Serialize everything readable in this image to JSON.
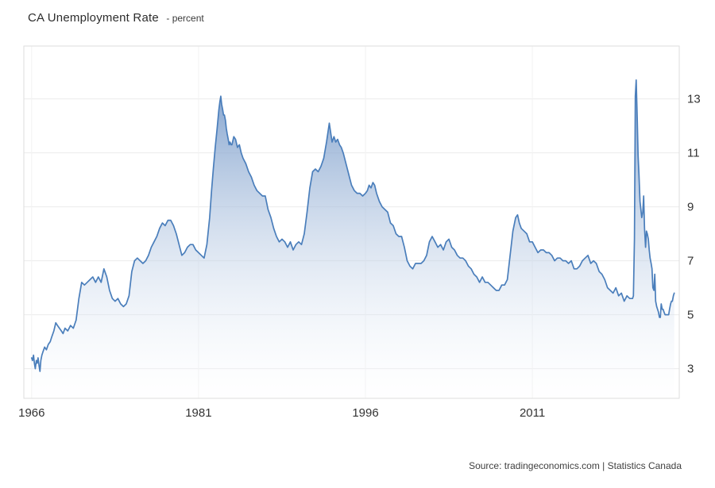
{
  "chart_data": {
    "type": "area",
    "title": "CA Unemployment Rate",
    "subtitle": "- percent",
    "source": "Source: tradingeconomics.com | Statistics Canada",
    "xlabel": "",
    "ylabel": "percent",
    "xlim": [
      1965.3,
      2024.2
    ],
    "ylim": [
      1.9,
      14.96
    ],
    "yticks": [
      3,
      5,
      7,
      9,
      11,
      13
    ],
    "xticks": [
      1966,
      1981,
      1996,
      2011
    ],
    "grid": true,
    "legend": "none",
    "colors": {
      "line": "#4a7ebb",
      "area_top": "rgba(92,134,190,0.95)",
      "area_bottom": "rgba(252,253,255,0.15)",
      "grid": "#ececec",
      "grid_v": "#f2f2f2",
      "border": "#dedede",
      "tick_text": "#333333"
    },
    "series": [
      {
        "name": "CA Unemployment Rate",
        "points": [
          [
            1966.0,
            3.4
          ],
          [
            1966.08,
            3.3
          ],
          [
            1966.17,
            3.5
          ],
          [
            1966.25,
            3.2
          ],
          [
            1966.33,
            3.0
          ],
          [
            1966.42,
            3.3
          ],
          [
            1966.5,
            3.2
          ],
          [
            1966.58,
            3.4
          ],
          [
            1966.67,
            3.1
          ],
          [
            1966.75,
            2.9
          ],
          [
            1966.83,
            3.3
          ],
          [
            1966.92,
            3.5
          ],
          [
            1967.0,
            3.6
          ],
          [
            1967.17,
            3.8
          ],
          [
            1967.33,
            3.7
          ],
          [
            1967.5,
            3.9
          ],
          [
            1967.67,
            4.0
          ],
          [
            1967.83,
            4.2
          ],
          [
            1968.0,
            4.4
          ],
          [
            1968.17,
            4.7
          ],
          [
            1968.33,
            4.6
          ],
          [
            1968.5,
            4.5
          ],
          [
            1968.67,
            4.4
          ],
          [
            1968.83,
            4.3
          ],
          [
            1969.0,
            4.5
          ],
          [
            1969.25,
            4.4
          ],
          [
            1969.5,
            4.6
          ],
          [
            1969.75,
            4.5
          ],
          [
            1970.0,
            4.8
          ],
          [
            1970.25,
            5.6
          ],
          [
            1970.5,
            6.2
          ],
          [
            1970.75,
            6.1
          ],
          [
            1971.0,
            6.2
          ],
          [
            1971.25,
            6.3
          ],
          [
            1971.5,
            6.4
          ],
          [
            1971.75,
            6.2
          ],
          [
            1972.0,
            6.4
          ],
          [
            1972.25,
            6.2
          ],
          [
            1972.5,
            6.7
          ],
          [
            1972.75,
            6.4
          ],
          [
            1973.0,
            5.9
          ],
          [
            1973.25,
            5.6
          ],
          [
            1973.5,
            5.5
          ],
          [
            1973.75,
            5.6
          ],
          [
            1974.0,
            5.4
          ],
          [
            1974.25,
            5.3
          ],
          [
            1974.5,
            5.4
          ],
          [
            1974.75,
            5.7
          ],
          [
            1975.0,
            6.6
          ],
          [
            1975.25,
            7.0
          ],
          [
            1975.5,
            7.1
          ],
          [
            1975.75,
            7.0
          ],
          [
            1976.0,
            6.9
          ],
          [
            1976.25,
            7.0
          ],
          [
            1976.5,
            7.2
          ],
          [
            1976.75,
            7.5
          ],
          [
            1977.0,
            7.7
          ],
          [
            1977.25,
            7.9
          ],
          [
            1977.5,
            8.2
          ],
          [
            1977.75,
            8.4
          ],
          [
            1978.0,
            8.3
          ],
          [
            1978.25,
            8.5
          ],
          [
            1978.5,
            8.5
          ],
          [
            1978.75,
            8.3
          ],
          [
            1979.0,
            8.0
          ],
          [
            1979.25,
            7.6
          ],
          [
            1979.5,
            7.2
          ],
          [
            1979.75,
            7.3
          ],
          [
            1980.0,
            7.5
          ],
          [
            1980.25,
            7.6
          ],
          [
            1980.5,
            7.6
          ],
          [
            1980.75,
            7.4
          ],
          [
            1981.0,
            7.3
          ],
          [
            1981.25,
            7.2
          ],
          [
            1981.5,
            7.1
          ],
          [
            1981.75,
            7.6
          ],
          [
            1982.0,
            8.6
          ],
          [
            1982.17,
            9.6
          ],
          [
            1982.33,
            10.4
          ],
          [
            1982.5,
            11.2
          ],
          [
            1982.67,
            11.9
          ],
          [
            1982.83,
            12.6
          ],
          [
            1982.92,
            12.9
          ],
          [
            1983.0,
            13.1
          ],
          [
            1983.08,
            12.8
          ],
          [
            1983.17,
            12.6
          ],
          [
            1983.25,
            12.4
          ],
          [
            1983.33,
            12.4
          ],
          [
            1983.42,
            12.2
          ],
          [
            1983.5,
            11.9
          ],
          [
            1983.58,
            11.7
          ],
          [
            1983.67,
            11.5
          ],
          [
            1983.75,
            11.3
          ],
          [
            1983.83,
            11.4
          ],
          [
            1983.92,
            11.3
          ],
          [
            1984.0,
            11.3
          ],
          [
            1984.17,
            11.6
          ],
          [
            1984.33,
            11.5
          ],
          [
            1984.5,
            11.2
          ],
          [
            1984.67,
            11.3
          ],
          [
            1984.83,
            11.0
          ],
          [
            1985.0,
            10.8
          ],
          [
            1985.25,
            10.6
          ],
          [
            1985.5,
            10.3
          ],
          [
            1985.75,
            10.1
          ],
          [
            1986.0,
            9.8
          ],
          [
            1986.25,
            9.6
          ],
          [
            1986.5,
            9.5
          ],
          [
            1986.75,
            9.4
          ],
          [
            1987.0,
            9.4
          ],
          [
            1987.25,
            8.9
          ],
          [
            1987.5,
            8.6
          ],
          [
            1987.75,
            8.2
          ],
          [
            1988.0,
            7.9
          ],
          [
            1988.25,
            7.7
          ],
          [
            1988.5,
            7.8
          ],
          [
            1988.75,
            7.7
          ],
          [
            1989.0,
            7.5
          ],
          [
            1989.25,
            7.7
          ],
          [
            1989.5,
            7.4
          ],
          [
            1989.75,
            7.6
          ],
          [
            1990.0,
            7.7
          ],
          [
            1990.25,
            7.6
          ],
          [
            1990.5,
            8.0
          ],
          [
            1990.75,
            8.8
          ],
          [
            1991.0,
            9.7
          ],
          [
            1991.25,
            10.3
          ],
          [
            1991.5,
            10.4
          ],
          [
            1991.75,
            10.3
          ],
          [
            1992.0,
            10.5
          ],
          [
            1992.25,
            10.8
          ],
          [
            1992.5,
            11.4
          ],
          [
            1992.75,
            12.1
          ],
          [
            1993.0,
            11.4
          ],
          [
            1993.17,
            11.6
          ],
          [
            1993.33,
            11.4
          ],
          [
            1993.5,
            11.5
          ],
          [
            1993.67,
            11.3
          ],
          [
            1993.83,
            11.2
          ],
          [
            1994.0,
            11.0
          ],
          [
            1994.25,
            10.6
          ],
          [
            1994.5,
            10.2
          ],
          [
            1994.75,
            9.8
          ],
          [
            1995.0,
            9.6
          ],
          [
            1995.25,
            9.5
          ],
          [
            1995.5,
            9.5
          ],
          [
            1995.75,
            9.4
          ],
          [
            1996.0,
            9.5
          ],
          [
            1996.17,
            9.6
          ],
          [
            1996.33,
            9.8
          ],
          [
            1996.5,
            9.7
          ],
          [
            1996.67,
            9.9
          ],
          [
            1996.83,
            9.8
          ],
          [
            1997.0,
            9.5
          ],
          [
            1997.25,
            9.2
          ],
          [
            1997.5,
            9.0
          ],
          [
            1997.75,
            8.9
          ],
          [
            1998.0,
            8.8
          ],
          [
            1998.25,
            8.4
          ],
          [
            1998.5,
            8.3
          ],
          [
            1998.75,
            8.0
          ],
          [
            1999.0,
            7.9
          ],
          [
            1999.25,
            7.9
          ],
          [
            1999.5,
            7.5
          ],
          [
            1999.75,
            7.0
          ],
          [
            2000.0,
            6.8
          ],
          [
            2000.25,
            6.7
          ],
          [
            2000.5,
            6.9
          ],
          [
            2000.75,
            6.9
          ],
          [
            2001.0,
            6.9
          ],
          [
            2001.25,
            7.0
          ],
          [
            2001.5,
            7.2
          ],
          [
            2001.75,
            7.7
          ],
          [
            2002.0,
            7.9
          ],
          [
            2002.25,
            7.7
          ],
          [
            2002.5,
            7.5
          ],
          [
            2002.75,
            7.6
          ],
          [
            2003.0,
            7.4
          ],
          [
            2003.25,
            7.7
          ],
          [
            2003.5,
            7.8
          ],
          [
            2003.75,
            7.5
          ],
          [
            2004.0,
            7.4
          ],
          [
            2004.25,
            7.2
          ],
          [
            2004.5,
            7.1
          ],
          [
            2004.75,
            7.1
          ],
          [
            2005.0,
            7.0
          ],
          [
            2005.25,
            6.8
          ],
          [
            2005.5,
            6.7
          ],
          [
            2005.75,
            6.5
          ],
          [
            2006.0,
            6.4
          ],
          [
            2006.25,
            6.2
          ],
          [
            2006.5,
            6.4
          ],
          [
            2006.75,
            6.2
          ],
          [
            2007.0,
            6.2
          ],
          [
            2007.25,
            6.1
          ],
          [
            2007.5,
            6.0
          ],
          [
            2007.75,
            5.9
          ],
          [
            2008.0,
            5.9
          ],
          [
            2008.25,
            6.1
          ],
          [
            2008.5,
            6.1
          ],
          [
            2008.75,
            6.3
          ],
          [
            2009.0,
            7.2
          ],
          [
            2009.25,
            8.1
          ],
          [
            2009.5,
            8.6
          ],
          [
            2009.67,
            8.7
          ],
          [
            2009.83,
            8.4
          ],
          [
            2010.0,
            8.2
          ],
          [
            2010.25,
            8.1
          ],
          [
            2010.5,
            8.0
          ],
          [
            2010.75,
            7.7
          ],
          [
            2011.0,
            7.7
          ],
          [
            2011.25,
            7.5
          ],
          [
            2011.5,
            7.3
          ],
          [
            2011.75,
            7.4
          ],
          [
            2012.0,
            7.4
          ],
          [
            2012.25,
            7.3
          ],
          [
            2012.5,
            7.3
          ],
          [
            2012.75,
            7.2
          ],
          [
            2013.0,
            7.0
          ],
          [
            2013.25,
            7.1
          ],
          [
            2013.5,
            7.1
          ],
          [
            2013.75,
            7.0
          ],
          [
            2014.0,
            7.0
          ],
          [
            2014.25,
            6.9
          ],
          [
            2014.5,
            7.0
          ],
          [
            2014.75,
            6.7
          ],
          [
            2015.0,
            6.7
          ],
          [
            2015.25,
            6.8
          ],
          [
            2015.5,
            7.0
          ],
          [
            2015.75,
            7.1
          ],
          [
            2016.0,
            7.2
          ],
          [
            2016.25,
            6.9
          ],
          [
            2016.5,
            7.0
          ],
          [
            2016.75,
            6.9
          ],
          [
            2017.0,
            6.6
          ],
          [
            2017.25,
            6.5
          ],
          [
            2017.5,
            6.3
          ],
          [
            2017.75,
            6.0
          ],
          [
            2018.0,
            5.9
          ],
          [
            2018.25,
            5.8
          ],
          [
            2018.5,
            6.0
          ],
          [
            2018.75,
            5.7
          ],
          [
            2019.0,
            5.8
          ],
          [
            2019.25,
            5.5
          ],
          [
            2019.5,
            5.7
          ],
          [
            2019.75,
            5.6
          ],
          [
            2020.0,
            5.6
          ],
          [
            2020.08,
            5.7
          ],
          [
            2020.17,
            7.8
          ],
          [
            2020.25,
            13.1
          ],
          [
            2020.33,
            13.7
          ],
          [
            2020.42,
            12.3
          ],
          [
            2020.5,
            10.9
          ],
          [
            2020.58,
            10.2
          ],
          [
            2020.67,
            9.2
          ],
          [
            2020.75,
            8.9
          ],
          [
            2020.83,
            8.6
          ],
          [
            2020.92,
            8.8
          ],
          [
            2021.0,
            9.4
          ],
          [
            2021.08,
            8.2
          ],
          [
            2021.17,
            7.5
          ],
          [
            2021.25,
            8.1
          ],
          [
            2021.33,
            8.0
          ],
          [
            2021.42,
            7.8
          ],
          [
            2021.5,
            7.4
          ],
          [
            2021.58,
            7.1
          ],
          [
            2021.67,
            6.9
          ],
          [
            2021.75,
            6.7
          ],
          [
            2021.83,
            6.0
          ],
          [
            2021.92,
            5.9
          ],
          [
            2022.0,
            6.5
          ],
          [
            2022.08,
            5.5
          ],
          [
            2022.17,
            5.3
          ],
          [
            2022.25,
            5.2
          ],
          [
            2022.33,
            5.1
          ],
          [
            2022.42,
            4.9
          ],
          [
            2022.5,
            4.9
          ],
          [
            2022.58,
            5.4
          ],
          [
            2022.67,
            5.2
          ],
          [
            2022.75,
            5.2
          ],
          [
            2022.83,
            5.1
          ],
          [
            2022.92,
            5.0
          ],
          [
            2023.0,
            5.0
          ],
          [
            2023.08,
            5.0
          ],
          [
            2023.17,
            5.0
          ],
          [
            2023.25,
            5.0
          ],
          [
            2023.33,
            5.2
          ],
          [
            2023.42,
            5.4
          ],
          [
            2023.5,
            5.5
          ],
          [
            2023.58,
            5.5
          ],
          [
            2023.67,
            5.7
          ],
          [
            2023.75,
            5.8
          ]
        ]
      }
    ]
  }
}
